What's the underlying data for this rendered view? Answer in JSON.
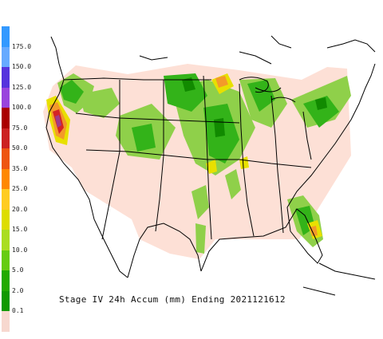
{
  "caption": "Stage IV 24h Accum (mm) Ending 2021121612",
  "legend": {
    "ticks": [
      "175.0",
      "150.0",
      "125.0",
      "100.0",
      "75.0",
      "50.0",
      "35.0",
      "25.0",
      "20.0",
      "15.0",
      "10.0",
      "5.0",
      "2.0",
      "0.1"
    ],
    "colors": [
      "#3399ff",
      "#66aaff",
      "#5533dd",
      "#9944dd",
      "#aa0000",
      "#cc2222",
      "#ee5511",
      "#ff8800",
      "#ffcc22",
      "#dddd00",
      "#aadd22",
      "#66cc11",
      "#22aa00",
      "#119900",
      "#f7d8cf"
    ]
  },
  "map_colors": {
    "land": "#fde0d6",
    "outline": "#000000",
    "light_green": "#8fd04a",
    "mid_green": "#33b319",
    "dark_green": "#118a00",
    "yellow": "#e8e000",
    "orange": "#f39a2a",
    "red": "#d42424",
    "purple": "#a03a8a"
  }
}
